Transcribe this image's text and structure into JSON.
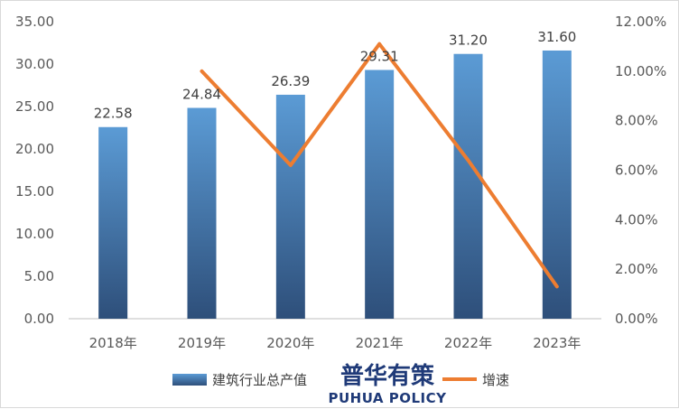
{
  "chart_data": {
    "type": "bar",
    "categories": [
      "2018年",
      "2019年",
      "2020年",
      "2021年",
      "2022年",
      "2023年"
    ],
    "series": [
      {
        "name": "建筑行业总产值",
        "type": "bar",
        "axis": "left",
        "values": [
          22.58,
          24.84,
          26.39,
          29.31,
          31.2,
          31.6
        ],
        "data_labels": [
          "22.58",
          "24.84",
          "26.39",
          "29.31",
          "31.20",
          "31.60"
        ]
      },
      {
        "name": "增速",
        "type": "line",
        "axis": "right",
        "values": [
          null,
          10.0,
          6.2,
          11.1,
          6.4,
          1.3
        ]
      }
    ],
    "y_left": {
      "ylim": [
        0,
        35
      ],
      "ticks": [
        "0.00",
        "5.00",
        "10.00",
        "15.00",
        "20.00",
        "25.00",
        "30.00",
        "35.00"
      ]
    },
    "y_right": {
      "ylim": [
        0,
        12
      ],
      "ticks": [
        "0.00%",
        "2.00%",
        "4.00%",
        "6.00%",
        "8.00%",
        "10.00%",
        "12.00%"
      ]
    },
    "legend": {
      "position": "bottom",
      "items": [
        "建筑行业总产值",
        "增速"
      ]
    },
    "grid": false,
    "colors": {
      "bar_top": "#5b9bd5",
      "bar_bottom": "#2e4f7a",
      "line": "#ed7d31"
    }
  },
  "watermark": {
    "cn": "普华有策",
    "en": "PUHUA POLICY"
  }
}
